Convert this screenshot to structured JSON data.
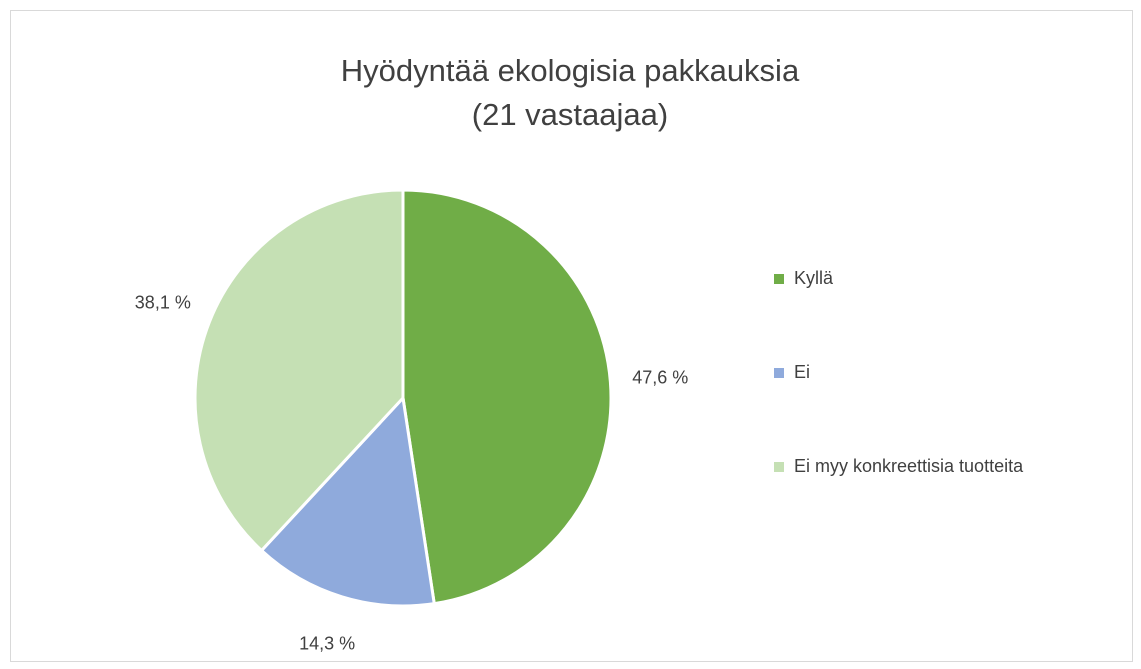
{
  "chart_data": {
    "type": "pie",
    "title": [
      "Hyödyntää ekologisia pakkauksia",
      "(21 vastaajaa)"
    ],
    "categories": [
      "Kyllä",
      "Ei",
      "Ei myy konkreettisia tuotteita"
    ],
    "values": [
      47.6,
      14.3,
      38.1
    ],
    "value_labels": [
      "47,6 %",
      "14,3 %",
      "38,1 %"
    ],
    "colors": [
      "#70ad47",
      "#8faadc",
      "#c5e0b4"
    ],
    "legend": "right"
  }
}
